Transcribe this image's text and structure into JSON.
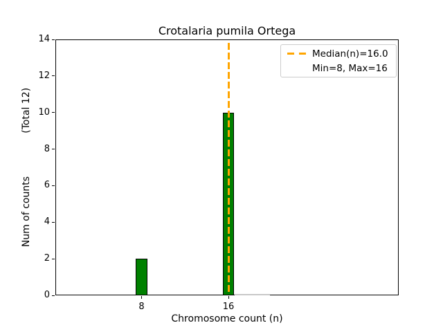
{
  "chart_data": {
    "type": "bar",
    "title": "Crotalaria pumila Ortega",
    "xlabel": "Chromosome count (n)",
    "ylabel": "Num of counts              (Total 12)",
    "total_count": 12,
    "x": [
      8,
      16
    ],
    "values": [
      2,
      10
    ],
    "xticks": [
      "8",
      "16"
    ],
    "yticks": [
      "0",
      "2",
      "4",
      "6",
      "8",
      "10",
      "12",
      "14"
    ],
    "ylim": [
      0,
      14
    ],
    "bar_color": "#008000",
    "bar_edge_color": "#000000",
    "median_line": {
      "x": 16,
      "color": "#ffa500",
      "style": "dashed"
    },
    "min": 8,
    "max": 16,
    "legend_entries": [
      {
        "label": "Median(n)=16.0",
        "sample": "orange-dashed-line"
      },
      {
        "label": "Min=8, Max=16",
        "sample": "none"
      }
    ],
    "legend_position": "upper right",
    "grid": false,
    "zero_baseline_segment": {
      "x_from": 16.6,
      "x_to": 19.8,
      "color": "#c8c8c8"
    }
  }
}
